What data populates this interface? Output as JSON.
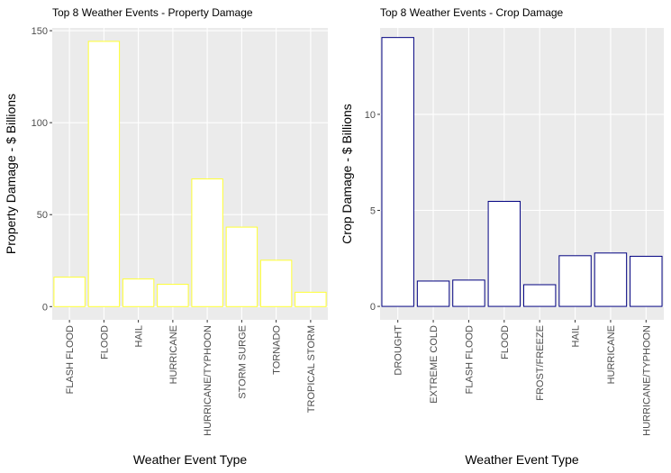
{
  "chart_data": [
    {
      "type": "bar",
      "title": "Top 8 Weather Events - Property Damage",
      "xlabel": "Weather Event Type",
      "ylabel": "Property Damage - $ Billions",
      "categories": [
        "FLASH FLOOD",
        "FLOOD",
        "HAIL",
        "HURRICANE",
        "HURRICANE/TYPHOON",
        "STORM SURGE",
        "TORNADO",
        "TROPICAL STORM"
      ],
      "values": [
        16.0,
        144.2,
        15.0,
        12.1,
        69.4,
        43.2,
        25.2,
        7.8
      ],
      "color": "#ffff33",
      "fill": "#ffffff",
      "ylim": [
        -7.2,
        151.5
      ],
      "yticks": [
        0,
        50,
        100,
        150
      ],
      "grid": true
    },
    {
      "type": "bar",
      "title": "Top 8 Weather Events - Crop Damage",
      "xlabel": "Weather Event Type",
      "ylabel": "Crop Damage - $ Billions",
      "categories": [
        "DROUGHT",
        "EXTREME COLD",
        "FLASH FLOOD",
        "FLOOD",
        "FROST/FREEZE",
        "HAIL",
        "HURRICANE",
        "HURRICANE/TYPHOON"
      ],
      "values": [
        14.0,
        1.32,
        1.37,
        5.47,
        1.13,
        2.64,
        2.78,
        2.61
      ],
      "color": "#000080",
      "fill": "#ffffff",
      "ylim": [
        -0.7,
        14.5
      ],
      "yticks": [
        0,
        5,
        10
      ],
      "grid": true
    }
  ]
}
